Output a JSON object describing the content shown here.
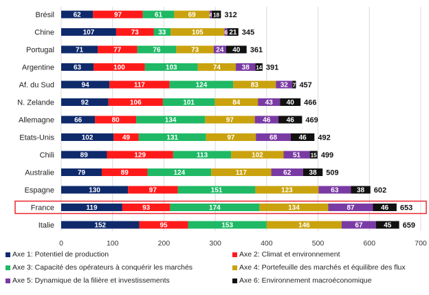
{
  "chart_data": {
    "type": "bar",
    "orientation": "horizontal",
    "stacked": true,
    "categories": [
      "Brésil",
      "Chine",
      "Portugal",
      "Argentine",
      "Af. du Sud",
      "N. Zelande",
      "Allemagne",
      "Etats-Unis",
      "Chili",
      "Australie",
      "Espagne",
      "France",
      "Italie"
    ],
    "series": [
      {
        "name": "Axe 1: Potentiel de production",
        "color": "#0f2a6b",
        "values": [
          62,
          107,
          71,
          63,
          94,
          92,
          66,
          102,
          89,
          79,
          130,
          119,
          152
        ]
      },
      {
        "name": "Axe 2: Climat et environnement",
        "color": "#ff1a1a",
        "values": [
          97,
          73,
          77,
          100,
          117,
          106,
          80,
          49,
          129,
          89,
          97,
          93,
          95
        ]
      },
      {
        "name": "Axe 3: Capacité des opérateurs à conquérir les marchés",
        "color": "#1fb865",
        "values": [
          61,
          33,
          76,
          103,
          124,
          101,
          134,
          131,
          113,
          124,
          151,
          174,
          153
        ]
      },
      {
        "name": "Axe 4: Portefeuille des marchés et équilibre des flux",
        "color": "#c9a20e",
        "values": [
          69,
          105,
          73,
          74,
          83,
          84,
          97,
          97,
          102,
          117,
          123,
          134,
          146
        ]
      },
      {
        "name": "Axe 5: Dynamique de la filière et investissements",
        "color": "#7a3aa3",
        "values": [
          4,
          6,
          24,
          38,
          32,
          43,
          46,
          68,
          51,
          62,
          63,
          87,
          67
        ]
      },
      {
        "name": "Axe 6: Environnement macroéconomique",
        "color": "#111111",
        "values": [
          18,
          21,
          40,
          14,
          7,
          40,
          46,
          46,
          15,
          38,
          38,
          46,
          45
        ]
      }
    ],
    "totals": [
      312,
      345,
      361,
      391,
      457,
      466,
      469,
      492,
      499,
      509,
      602,
      653,
      659
    ],
    "xlim": [
      0,
      700
    ],
    "xticks": [
      0,
      100,
      200,
      300,
      400,
      500,
      600,
      700
    ],
    "highlighted_category": "France",
    "highlight_color": "#e8252b",
    "grid": true,
    "legend_position": "bottom",
    "title": "",
    "xlabel": "",
    "ylabel": ""
  }
}
